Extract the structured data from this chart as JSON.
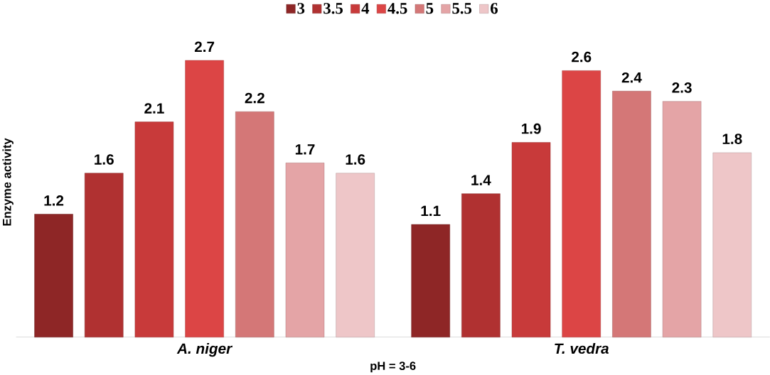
{
  "chart_data": {
    "type": "bar",
    "xlabel": "pH = 3-6",
    "ylabel": "Enzyme activity",
    "categories": [
      "A. niger",
      "T. vedra"
    ],
    "series": [
      {
        "name": "3",
        "color": "#8e2626",
        "values": [
          1.2,
          1.1
        ]
      },
      {
        "name": "3.5",
        "color": "#b03131",
        "values": [
          1.6,
          1.4
        ]
      },
      {
        "name": "4",
        "color": "#c83a3a",
        "values": [
          2.1,
          1.9
        ]
      },
      {
        "name": "4.5",
        "color": "#dc4545",
        "values": [
          2.7,
          2.6
        ]
      },
      {
        "name": "5",
        "color": "#d47777",
        "values": [
          2.2,
          2.4
        ]
      },
      {
        "name": "5.5",
        "color": "#e4a4a6",
        "values": [
          1.7,
          2.3
        ]
      },
      {
        "name": "6",
        "color": "#eec6c8",
        "values": [
          1.6,
          1.8
        ]
      }
    ],
    "data_labels": true,
    "legend": "top"
  }
}
